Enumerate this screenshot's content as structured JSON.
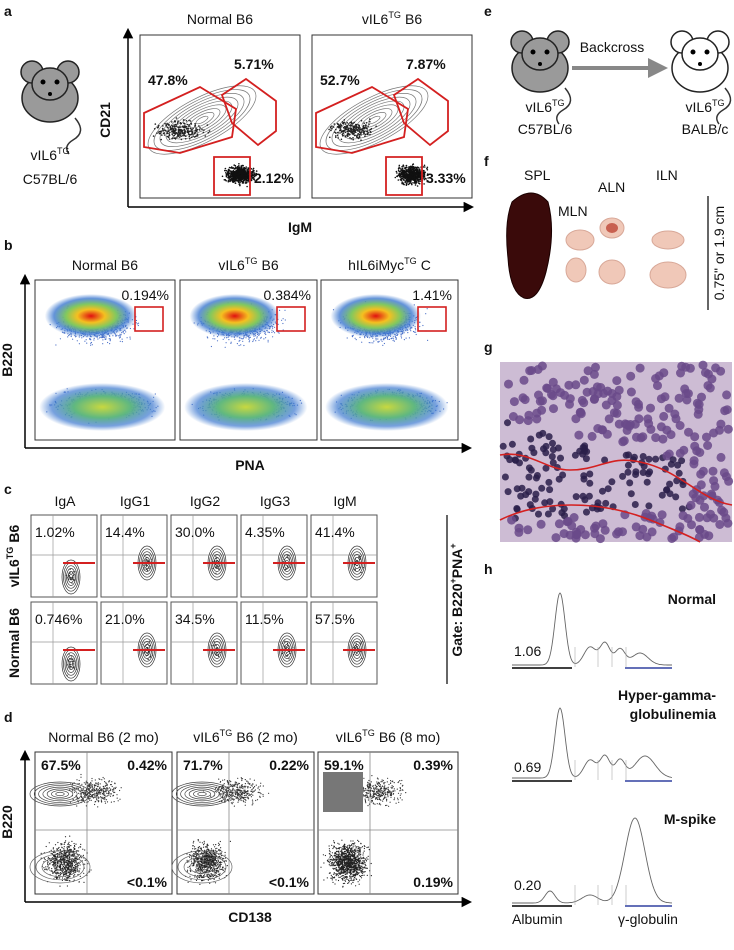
{
  "panel_labels": [
    "a",
    "b",
    "c",
    "d",
    "e",
    "f",
    "g",
    "h"
  ],
  "a": {
    "mouse": {
      "name": "vIL6",
      "sup": "TG",
      "strain": "C57BL/6"
    },
    "plots": [
      {
        "title": {
          "name": "Normal B6"
        },
        "gates": [
          "47.8%",
          "5.71%",
          "2.12%"
        ]
      },
      {
        "title": {
          "name": "vIL6",
          "sup": "TG",
          "suffix": "B6"
        },
        "gates": [
          "52.7%",
          "7.87%",
          "3.33%"
        ]
      }
    ],
    "y_axis": "CD21",
    "x_axis": "IgM"
  },
  "b": {
    "plots": [
      {
        "title": {
          "name": "Normal B6"
        },
        "gate": "0.194%"
      },
      {
        "title": {
          "name": "vIL6",
          "sup": "TG",
          "suffix": "B6"
        },
        "gate": "0.384%"
      },
      {
        "title": {
          "name": "hIL6iMyc",
          "sup": "TG",
          "suffix": "C"
        },
        "gate": "1.41%"
      }
    ],
    "y_axis": "B220",
    "x_axis": "PNA"
  },
  "c": {
    "columns": [
      "IgA",
      "IgG1",
      "IgG2",
      "IgG3",
      "IgM"
    ],
    "rows": [
      {
        "label": {
          "name": "vIL6",
          "sup": "TG",
          "suffix": "B6"
        },
        "values": [
          "1.02%",
          "14.4%",
          "30.0%",
          "4.35%",
          "41.4%"
        ]
      },
      {
        "label": {
          "name": "Normal B6"
        },
        "values": [
          "0.746%",
          "21.0%",
          "34.5%",
          "11.5%",
          "57.5%"
        ]
      }
    ],
    "gate": {
      "name": "Gate: B220",
      "sup1": "+",
      "mid": "PNA",
      "sup2": "+"
    }
  },
  "d": {
    "plots": [
      {
        "title": {
          "name": "Normal B6 (2 mo)"
        },
        "quadrants": [
          "67.5%",
          "0.42%",
          "<0.1%"
        ]
      },
      {
        "title": {
          "name": "vIL6",
          "sup": "TG",
          "suffix": "B6 (2 mo)"
        },
        "quadrants": [
          "71.7%",
          "0.22%",
          "<0.1%"
        ]
      },
      {
        "title": {
          "name": "vIL6",
          "sup": "TG",
          "suffix": "B6 (8 mo)"
        },
        "quadrants": [
          "59.1%",
          "0.39%",
          "0.19%"
        ]
      }
    ],
    "y_axis": "B220",
    "x_axis": "CD138"
  },
  "e": {
    "donor": {
      "name": "vIL6",
      "sup": "TG",
      "strain": "C57BL/6"
    },
    "arrow": "Backcross",
    "recipient": {
      "name": "vIL6",
      "sup": "TG",
      "strain": "BALB/c"
    }
  },
  "f": {
    "organs": [
      "SPL",
      "MLN",
      "ALN",
      "ILN"
    ],
    "scale": "0.75\" or 1.9 cm"
  },
  "h": {
    "traces": [
      {
        "title": [
          "Normal"
        ],
        "ratio": "1.06"
      },
      {
        "title": [
          "Hyper-gamma-",
          "globulinemia"
        ],
        "ratio": "0.69"
      },
      {
        "title": [
          "M-spike"
        ],
        "ratio": "0.20"
      }
    ],
    "albumin": "Albumin",
    "gamma": "γ-globulin"
  }
}
